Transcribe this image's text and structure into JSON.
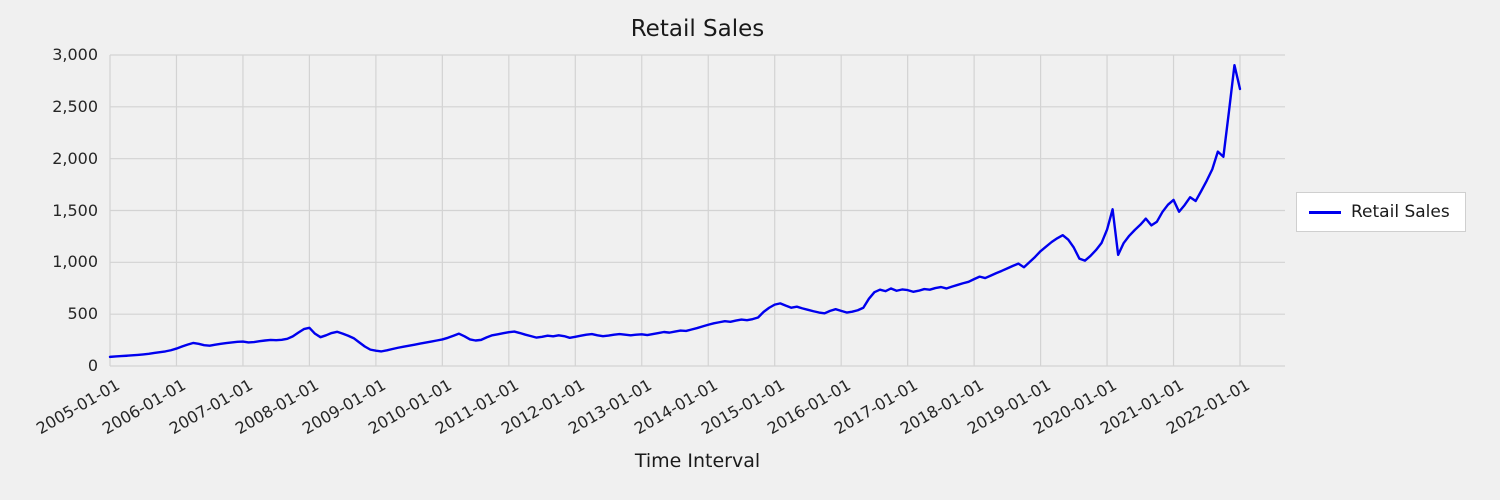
{
  "title": "Retail Sales",
  "xlabel": "Time Interval",
  "legend": {
    "items": [
      {
        "label": "Retail Sales",
        "color": "#0000ee"
      }
    ]
  },
  "colors": {
    "background": "#f0f0f0",
    "grid": "#d3d3d3",
    "line": "#0000ee",
    "text": "#1a1a1a"
  },
  "chart_data": {
    "type": "line",
    "title": "Retail Sales",
    "xlabel": "Time Interval",
    "ylabel": "",
    "grid": true,
    "legend_position": "right",
    "ylim": [
      0,
      3000
    ],
    "y_ticks": [
      0,
      500,
      1000,
      1500,
      2000,
      2500,
      3000
    ],
    "y_tick_labels": [
      "0",
      "500",
      "1,000",
      "1,500",
      "2,000",
      "2,500",
      "3,000"
    ],
    "x_ticks": [
      "2005-01-01",
      "2006-01-01",
      "2007-01-01",
      "2008-01-01",
      "2009-01-01",
      "2010-01-01",
      "2011-01-01",
      "2012-01-01",
      "2013-01-01",
      "2014-01-01",
      "2015-01-01",
      "2016-01-01",
      "2017-01-01",
      "2018-01-01",
      "2019-01-01",
      "2020-01-01",
      "2021-01-01",
      "2022-01-01"
    ],
    "x_start": "2005-01-01",
    "x_step": "1 month",
    "series": [
      {
        "name": "Retail Sales",
        "color": "#0000ee",
        "values": [
          88,
          92,
          96,
          99,
          103,
          107,
          112,
          118,
          126,
          133,
          141,
          152,
          168,
          188,
          206,
          222,
          214,
          201,
          196,
          206,
          214,
          221,
          227,
          233,
          236,
          227,
          231,
          239,
          246,
          251,
          249,
          253,
          262,
          286,
          322,
          356,
          368,
          312,
          278,
          296,
          318,
          330,
          312,
          292,
          268,
          228,
          188,
          158,
          148,
          141,
          151,
          164,
          176,
          186,
          196,
          206,
          216,
          226,
          236,
          246,
          256,
          272,
          292,
          312,
          286,
          256,
          246,
          252,
          276,
          296,
          306,
          316,
          326,
          332,
          318,
          302,
          288,
          274,
          282,
          292,
          286,
          296,
          288,
          272,
          282,
          292,
          302,
          308,
          296,
          288,
          294,
          302,
          308,
          302,
          296,
          302,
          306,
          298,
          308,
          318,
          328,
          322,
          332,
          342,
          338,
          352,
          366,
          382,
          398,
          412,
          422,
          432,
          426,
          438,
          448,
          442,
          452,
          468,
          522,
          562,
          592,
          604,
          582,
          562,
          572,
          556,
          542,
          528,
          516,
          508,
          532,
          548,
          532,
          516,
          524,
          538,
          562,
          648,
          712,
          736,
          722,
          748,
          726,
          738,
          732,
          716,
          726,
          742,
          736,
          752,
          762,
          748,
          766,
          782,
          798,
          812,
          838,
          862,
          848,
          872,
          896,
          918,
          942,
          966,
          988,
          952,
          1002,
          1052,
          1108,
          1152,
          1196,
          1232,
          1262,
          1218,
          1142,
          1036,
          1016,
          1062,
          1118,
          1186,
          1316,
          1512,
          1072,
          1186,
          1256,
          1312,
          1362,
          1422,
          1356,
          1392,
          1486,
          1556,
          1602,
          1488,
          1552,
          1628,
          1592,
          1688,
          1788,
          1898,
          2068,
          2018,
          2452,
          2902,
          2672
        ]
      }
    ]
  }
}
